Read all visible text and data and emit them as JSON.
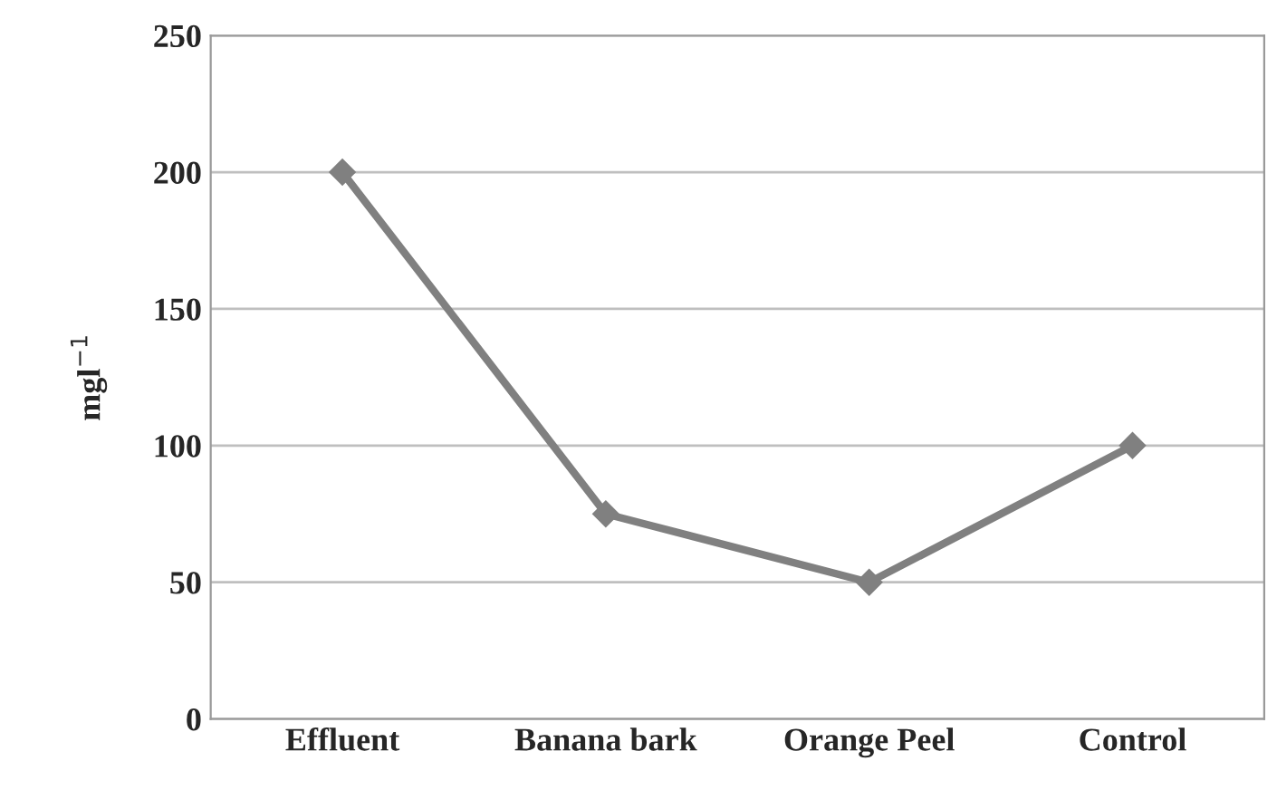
{
  "chart_data": {
    "type": "line",
    "ylabel": "mgl$^{−1}$",
    "categories": [
      "Effluent",
      "Banana bark",
      "Orange Peel",
      "Control"
    ],
    "series": [
      {
        "color": "#808080",
        "values": [
          200,
          75,
          50,
          100
        ]
      }
    ],
    "ylim": [
      0,
      250
    ],
    "yticks": [
      0,
      50,
      100,
      150,
      200,
      250
    ],
    "grid": "y",
    "marker": "diamond",
    "line_style": "solid",
    "legend": false
  }
}
